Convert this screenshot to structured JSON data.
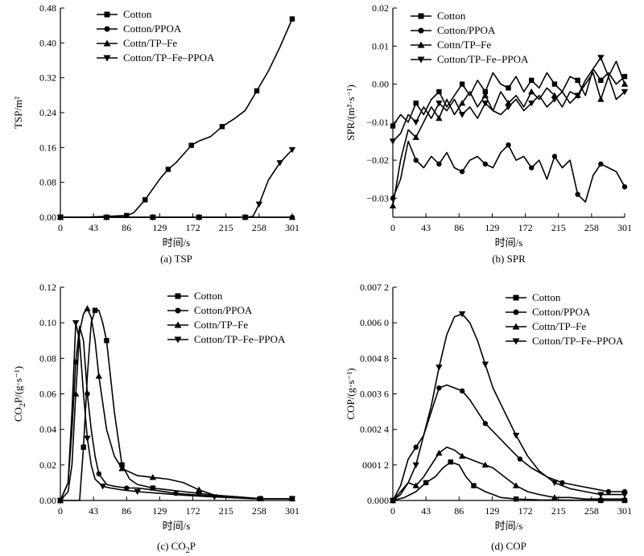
{
  "chart_data": [
    {
      "type": "line",
      "key": "tsp",
      "caption": "(a) TSP",
      "xlabel": "时间/s",
      "ylabel": "TSP/m²",
      "xlim": [
        0,
        301
      ],
      "ylim": [
        0,
        0.48
      ],
      "xticks": [
        0,
        43,
        86,
        129,
        172,
        215,
        258,
        301
      ],
      "xtick_labels": [
        "0",
        "43",
        "86",
        "129",
        "172",
        "215",
        "258",
        "301"
      ],
      "yticks": [
        0,
        0.08,
        0.16,
        0.24,
        0.32,
        0.4,
        0.48
      ],
      "ytick_labels": [
        "0.00",
        "0.08",
        "0.16",
        "0.24",
        "0.32",
        "0.40",
        "0.48"
      ],
      "legend": [
        "Cotton",
        "Cotton/PPOA",
        "Cottn/TP–Fe",
        "Cotton/TP–Fe–PPOA"
      ],
      "series": [
        {
          "name": "Cotton",
          "marker": "square",
          "x": [
            0,
            30,
            60,
            86,
            95,
            100,
            110,
            120,
            130,
            140,
            150,
            160,
            170,
            180,
            195,
            210,
            225,
            240,
            255,
            270,
            285,
            301
          ],
          "y": [
            0,
            0,
            0.002,
            0.004,
            0.01,
            0.02,
            0.04,
            0.065,
            0.09,
            0.11,
            0.125,
            0.145,
            0.165,
            0.175,
            0.185,
            0.208,
            0.225,
            0.245,
            0.29,
            0.335,
            0.39,
            0.455
          ]
        },
        {
          "name": "Cotton/PPOA",
          "marker": "circle",
          "x": [
            0,
            30,
            60,
            90,
            120,
            150,
            180,
            210,
            240,
            270,
            301
          ],
          "y": [
            0,
            0,
            0,
            0,
            0,
            0,
            0,
            0,
            0,
            0,
            0
          ]
        },
        {
          "name": "Cottn/TP–Fe",
          "marker": "triangle-up",
          "x": [
            0,
            30,
            60,
            90,
            120,
            150,
            180,
            210,
            240,
            270,
            301
          ],
          "y": [
            0,
            0,
            0,
            0,
            0,
            0,
            0,
            0,
            0,
            0,
            0
          ]
        },
        {
          "name": "Cotton/TP–Fe–PPOA",
          "marker": "triangle-down",
          "x": [
            0,
            30,
            60,
            90,
            120,
            150,
            180,
            210,
            240,
            250,
            258,
            270,
            285,
            301
          ],
          "y": [
            0,
            0,
            0,
            0,
            0,
            0,
            0,
            0,
            0,
            0.002,
            0.03,
            0.085,
            0.125,
            0.155
          ]
        }
      ]
    },
    {
      "type": "line",
      "key": "spr",
      "caption": "(b) SPR",
      "xlabel": "时间/s",
      "ylabel": "SPR/(m²·s⁻¹)",
      "xlim": [
        0,
        301
      ],
      "ylim": [
        -0.035,
        0.02
      ],
      "xticks": [
        0,
        43,
        86,
        129,
        172,
        215,
        258,
        301
      ],
      "xtick_labels": [
        "0",
        "43",
        "86",
        "129",
        "172",
        "215",
        "258",
        "301"
      ],
      "yticks": [
        -0.03,
        -0.02,
        -0.01,
        0.0,
        0.01,
        0.02
      ],
      "ytick_labels": [
        "−0.03",
        "−0.02",
        "−0.01",
        "0.00",
        "0.01",
        "0.02"
      ],
      "legend": [
        "Cotton",
        "Cotton/PPOA",
        "Cottn/TP–Fe",
        "Cotton/TP–Fe–PPOA"
      ],
      "series": [
        {
          "name": "Cotton",
          "marker": "square",
          "x": [
            0,
            10,
            20,
            30,
            40,
            50,
            60,
            70,
            80,
            90,
            100,
            110,
            120,
            130,
            140,
            150,
            160,
            170,
            180,
            190,
            200,
            210,
            220,
            230,
            240,
            250,
            260,
            270,
            280,
            290,
            301
          ],
          "y": [
            -0.011,
            -0.008,
            -0.01,
            -0.005,
            -0.008,
            -0.004,
            -0.002,
            -0.006,
            -0.003,
            0.0,
            -0.003,
            0.001,
            -0.002,
            0.003,
            0.0,
            -0.001,
            0.002,
            -0.002,
            0.001,
            -0.001,
            0.003,
            0.0,
            -0.002,
            0.002,
            0.001,
            -0.003,
            0.004,
            0.001,
            0.003,
            0.0,
            0.002
          ]
        },
        {
          "name": "Cotton/PPOA",
          "marker": "circle",
          "x": [
            0,
            10,
            20,
            30,
            40,
            50,
            60,
            70,
            80,
            90,
            100,
            110,
            120,
            130,
            140,
            150,
            160,
            170,
            180,
            190,
            200,
            210,
            220,
            230,
            240,
            250,
            260,
            270,
            280,
            290,
            301
          ],
          "y": [
            -0.03,
            -0.025,
            -0.015,
            -0.02,
            -0.022,
            -0.019,
            -0.021,
            -0.018,
            -0.022,
            -0.023,
            -0.02,
            -0.019,
            -0.021,
            -0.022,
            -0.018,
            -0.016,
            -0.02,
            -0.019,
            -0.022,
            -0.02,
            -0.025,
            -0.019,
            -0.022,
            -0.02,
            -0.029,
            -0.031,
            -0.024,
            -0.021,
            -0.022,
            -0.023,
            -0.027
          ]
        },
        {
          "name": "Cottn/TP–Fe",
          "marker": "triangle-up",
          "x": [
            0,
            10,
            20,
            30,
            40,
            50,
            60,
            70,
            80,
            90,
            100,
            110,
            120,
            130,
            140,
            150,
            160,
            170,
            180,
            190,
            200,
            210,
            220,
            230,
            240,
            250,
            260,
            270,
            280,
            290,
            301
          ],
          "y": [
            -0.032,
            -0.02,
            -0.012,
            -0.014,
            -0.01,
            -0.006,
            -0.009,
            -0.004,
            -0.008,
            -0.005,
            -0.002,
            -0.006,
            -0.003,
            -0.007,
            -0.002,
            -0.005,
            -0.003,
            -0.006,
            -0.002,
            -0.004,
            -0.001,
            -0.003,
            -0.006,
            -0.002,
            -0.003,
            0.0,
            0.003,
            -0.004,
            0.002,
            0.006,
            0.0
          ]
        },
        {
          "name": "Cotton/TP–Fe–PPOA",
          "marker": "triangle-down",
          "x": [
            0,
            10,
            20,
            30,
            40,
            50,
            60,
            70,
            80,
            90,
            100,
            110,
            120,
            130,
            140,
            150,
            160,
            170,
            180,
            190,
            200,
            210,
            220,
            230,
            240,
            250,
            260,
            270,
            280,
            290,
            301
          ],
          "y": [
            -0.015,
            -0.013,
            -0.008,
            -0.01,
            -0.006,
            -0.009,
            -0.005,
            -0.007,
            -0.004,
            -0.008,
            -0.006,
            -0.009,
            -0.005,
            -0.007,
            -0.008,
            -0.006,
            -0.004,
            -0.007,
            -0.005,
            -0.003,
            -0.006,
            -0.004,
            -0.002,
            -0.005,
            -0.003,
            0.001,
            0.004,
            0.007,
            0.002,
            -0.004,
            -0.002
          ]
        }
      ]
    },
    {
      "type": "line",
      "key": "co2p",
      "caption_main": "(c) CO",
      "caption_sub": "2",
      "caption_tail": "P",
      "xlabel": "时间/s",
      "ylabel_main": "CO",
      "ylabel_sub": "2",
      "ylabel_tail": "P/(g·s⁻¹)",
      "xlim": [
        0,
        301
      ],
      "ylim": [
        0,
        0.12
      ],
      "xticks": [
        0,
        43,
        86,
        129,
        172,
        215,
        258,
        301
      ],
      "xtick_labels": [
        "0",
        "43",
        "86",
        "129",
        "172",
        "215",
        "258",
        "301"
      ],
      "yticks": [
        0,
        0.02,
        0.04,
        0.06,
        0.08,
        0.1,
        0.12
      ],
      "ytick_labels": [
        "0.00",
        "0.02",
        "0.04",
        "0.06",
        "0.08",
        "0.10",
        "0.12"
      ],
      "legend": [
        "Cotton",
        "Cotton/PPOA",
        "Cottn/TP–Fe",
        "Cotton/TP–Fe–PPOA"
      ],
      "series": [
        {
          "name": "Cotton",
          "marker": "square",
          "x": [
            0,
            15,
            25,
            30,
            35,
            40,
            45,
            50,
            55,
            60,
            65,
            70,
            80,
            90,
            100,
            120,
            140,
            160,
            180,
            200,
            230,
            260,
            301
          ],
          "y": [
            0,
            0,
            0,
            0.03,
            0.07,
            0.1,
            0.107,
            0.107,
            0.1,
            0.09,
            0.07,
            0.05,
            0.02,
            0.012,
            0.009,
            0.007,
            0.006,
            0.005,
            0.004,
            0.003,
            0.002,
            0.001,
            0.001
          ]
        },
        {
          "name": "Cotton/PPOA",
          "marker": "circle",
          "x": [
            0,
            10,
            15,
            20,
            25,
            30,
            35,
            40,
            45,
            50,
            60,
            70,
            86,
            100,
            120,
            150,
            180,
            215,
            258,
            301
          ],
          "y": [
            0,
            0.01,
            0.04,
            0.078,
            0.098,
            0.09,
            0.06,
            0.04,
            0.025,
            0.015,
            0.009,
            0.008,
            0.007,
            0.007,
            0.006,
            0.004,
            0.003,
            0.002,
            0.001,
            0.001
          ]
        },
        {
          "name": "Cottn/TP–Fe",
          "marker": "triangle-up",
          "x": [
            0,
            10,
            15,
            20,
            25,
            30,
            35,
            40,
            45,
            50,
            60,
            70,
            80,
            90,
            100,
            120,
            140,
            160,
            180,
            200,
            230,
            260,
            301
          ],
          "y": [
            0,
            0.005,
            0.02,
            0.06,
            0.095,
            0.105,
            0.108,
            0.103,
            0.09,
            0.07,
            0.04,
            0.025,
            0.018,
            0.016,
            0.014,
            0.013,
            0.012,
            0.01,
            0.006,
            0.003,
            0.002,
            0.001,
            0.001
          ]
        },
        {
          "name": "Cotton/TP–Fe–PPOA",
          "marker": "triangle-down",
          "x": [
            0,
            10,
            15,
            20,
            25,
            30,
            35,
            40,
            45,
            55,
            65,
            80,
            100,
            130,
            160,
            200,
            250,
            301
          ],
          "y": [
            0,
            0.01,
            0.05,
            0.1,
            0.09,
            0.06,
            0.035,
            0.02,
            0.012,
            0.008,
            0.007,
            0.006,
            0.005,
            0.004,
            0.003,
            0.002,
            0.001,
            0.001
          ]
        }
      ]
    },
    {
      "type": "line",
      "key": "cop",
      "caption": "(d) COP",
      "xlabel": "时间/s",
      "ylabel": "COP/(g·s⁻¹)",
      "xlim": [
        0,
        301
      ],
      "ylim": [
        0,
        0.0072
      ],
      "xticks": [
        0,
        43,
        86,
        129,
        172,
        215,
        258,
        301
      ],
      "xtick_labels": [
        "0",
        "43",
        "86",
        "129",
        "172",
        "215",
        "258",
        "301"
      ],
      "yticks": [
        0,
        0.0012,
        0.0024,
        0.0036,
        0.0048,
        0.006,
        0.0072
      ],
      "ytick_labels": [
        "0.000",
        "0001 2",
        "0.002 4",
        "0.003 6",
        "0.004 8",
        "0.006 0",
        "0.007 2"
      ],
      "legend": [
        "Cotton",
        "Cotton/PPOA",
        "Cottn/TP–Fe",
        "Cotton/TP–Fe–PPOA"
      ],
      "series": [
        {
          "name": "Cotton",
          "marker": "square",
          "x": [
            0,
            15,
            30,
            43,
            55,
            65,
            75,
            86,
            95,
            105,
            120,
            140,
            160,
            190,
            230,
            270,
            301
          ],
          "y": [
            0,
            0.0001,
            0.0003,
            0.0006,
            0.0008,
            0.0011,
            0.0013,
            0.0012,
            0.0008,
            0.0005,
            0.0003,
            0.0001,
            5e-05,
            2e-05,
            1e-05,
            0.0,
            0.0
          ]
        },
        {
          "name": "Cotton/PPOA",
          "marker": "circle",
          "x": [
            0,
            10,
            20,
            30,
            40,
            50,
            60,
            70,
            80,
            90,
            100,
            110,
            120,
            135,
            150,
            165,
            180,
            200,
            220,
            240,
            260,
            280,
            301
          ],
          "y": [
            0,
            0.0005,
            0.0014,
            0.0018,
            0.0022,
            0.003,
            0.0038,
            0.0039,
            0.0038,
            0.0037,
            0.0034,
            0.003,
            0.0026,
            0.0022,
            0.0018,
            0.0014,
            0.0011,
            0.0008,
            0.0006,
            0.0005,
            0.0004,
            0.0003,
            0.0003
          ]
        },
        {
          "name": "Cottn/TP–Fe",
          "marker": "triangle-up",
          "x": [
            0,
            10,
            20,
            30,
            40,
            50,
            60,
            70,
            80,
            90,
            100,
            110,
            120,
            130,
            145,
            160,
            175,
            190,
            210,
            230,
            250,
            270,
            301
          ],
          "y": [
            0,
            0.0003,
            0.0006,
            0.0005,
            0.0008,
            0.0012,
            0.0016,
            0.0018,
            0.0017,
            0.0015,
            0.0014,
            0.0013,
            0.0012,
            0.0011,
            0.0008,
            0.0005,
            0.0003,
            0.0002,
            0.0001,
            0.0001,
            5e-05,
            5e-05,
            5e-05
          ]
        },
        {
          "name": "Cotton/TP–Fe–PPOA",
          "marker": "triangle-down",
          "x": [
            0,
            10,
            20,
            30,
            40,
            50,
            60,
            70,
            80,
            90,
            100,
            110,
            120,
            130,
            145,
            160,
            175,
            190,
            210,
            230,
            250,
            270,
            301
          ],
          "y": [
            0,
            0.0002,
            0.0006,
            0.0012,
            0.0022,
            0.0032,
            0.0045,
            0.0056,
            0.0062,
            0.0063,
            0.006,
            0.0054,
            0.0046,
            0.0038,
            0.003,
            0.0022,
            0.0015,
            0.001,
            0.0006,
            0.0004,
            0.0003,
            0.0002,
            0.0002
          ]
        }
      ]
    }
  ]
}
